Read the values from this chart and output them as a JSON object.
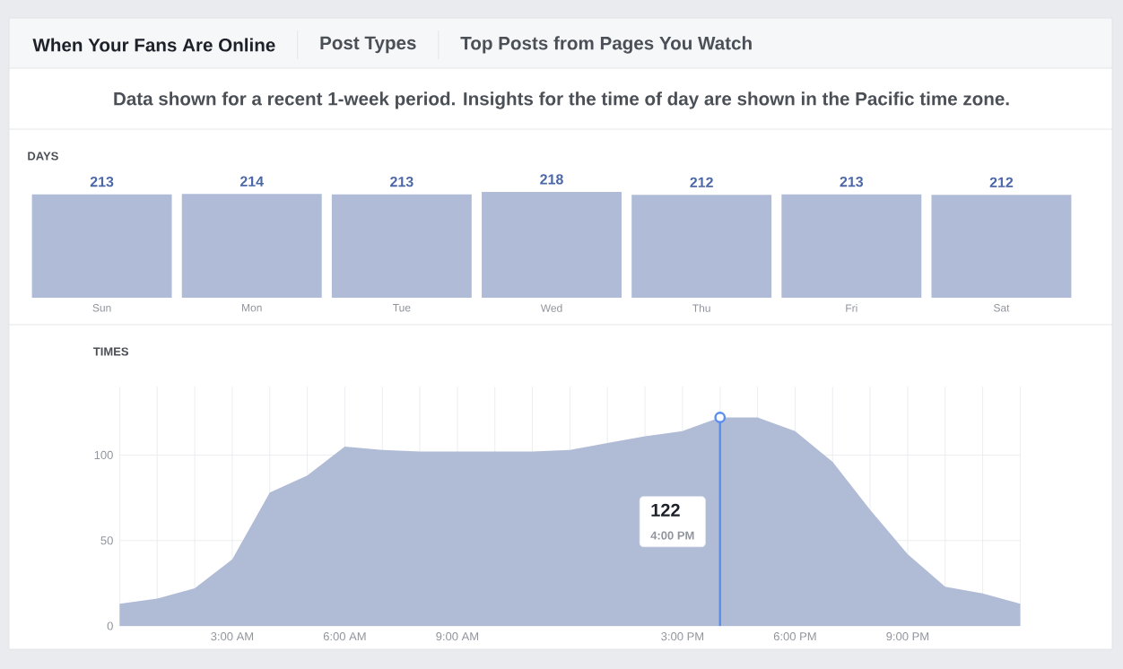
{
  "chart_data": [
    {
      "type": "other",
      "subtitle": "Data shown for a recent 1-week period. Insights for the time of day are shown in the Pacific time zone.",
      "annotations": [
        "When Your Fans Are Online",
        "Post Types",
        "Top Posts from Pages You Watch"
      ]
    },
    {
      "type": "bar",
      "title": "DAYS",
      "categories": [
        "Sun",
        "Mon",
        "Tue",
        "Wed",
        "Thu",
        "Fri",
        "Sat"
      ],
      "values": [
        213,
        214,
        213,
        218,
        212,
        213,
        212
      ],
      "color": "#b0bcd7",
      "ylim": [
        0,
        218
      ],
      "data_labels": true
    },
    {
      "type": "area",
      "title": "TIMES",
      "x": [
        0,
        1,
        2,
        3,
        4,
        5,
        6,
        7,
        8,
        9,
        10,
        11,
        12,
        13,
        14,
        15,
        16,
        17,
        18,
        19,
        20,
        21,
        22,
        23,
        24
      ],
      "values": [
        13,
        16,
        22,
        39,
        78,
        88,
        105,
        103,
        102,
        102,
        102,
        102,
        103,
        107,
        111,
        114,
        122,
        122,
        114,
        96,
        68,
        42,
        23,
        19,
        13
      ],
      "color": "#b0bbd6",
      "xlim": [
        0,
        24
      ],
      "ylim": [
        0,
        140
      ],
      "xticks": [
        {
          "value": 0,
          "label": null
        },
        {
          "value": 1,
          "label": null
        },
        {
          "value": 2,
          "label": null
        },
        {
          "value": 3,
          "label": "3:00 AM"
        },
        {
          "value": 4,
          "label": null
        },
        {
          "value": 5,
          "label": null
        },
        {
          "value": 6,
          "label": "6:00 AM"
        },
        {
          "value": 7,
          "label": null
        },
        {
          "value": 8,
          "label": null
        },
        {
          "value": 9,
          "label": "9:00 AM"
        },
        {
          "value": 10,
          "label": null
        },
        {
          "value": 11,
          "label": null
        },
        {
          "value": 12,
          "label": null
        },
        {
          "value": 13,
          "label": null
        },
        {
          "value": 14,
          "label": null
        },
        {
          "value": 15,
          "label": "3:00 PM"
        },
        {
          "value": 16,
          "label": null
        },
        {
          "value": 17,
          "label": null
        },
        {
          "value": 18,
          "label": "6:00 PM"
        },
        {
          "value": 19,
          "label": null
        },
        {
          "value": 20,
          "label": null
        },
        {
          "value": 21,
          "label": "9:00 PM"
        },
        {
          "value": 22,
          "label": null
        },
        {
          "value": 23,
          "label": null
        },
        {
          "value": 24,
          "label": null
        }
      ],
      "yticks": [
        0,
        50,
        100
      ],
      "grid": true,
      "ref_lines": [
        {
          "axis": "x",
          "value": 16,
          "color": "#5b8def"
        }
      ],
      "annotations": [
        "122",
        "4:00 PM"
      ]
    }
  ]
}
